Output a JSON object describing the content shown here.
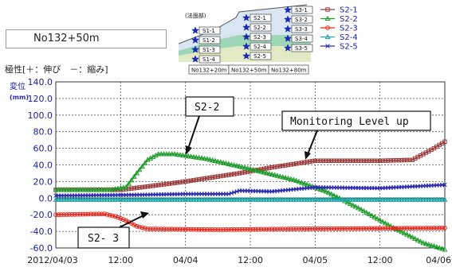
{
  "header": {
    "section_label": "No132+50m",
    "polarity_note": "極性[＋：伸び　－：縮み]",
    "ylabel": "変位",
    "yunit": "(mm)"
  },
  "diagram": {
    "slope_label": "(法面部)",
    "anchor_labels": [
      "S1-1",
      "S1-2",
      "S1-3",
      "S1-4",
      "S1-5",
      "S2-1",
      "S2-2",
      "S2-3",
      "S2-4",
      "S2-5",
      "S3-1",
      "S3-2",
      "S3-3",
      "S3-4",
      "S3-5"
    ],
    "stations": [
      "No132+20m",
      "No132+50m",
      "No132+80m"
    ]
  },
  "callouts": {
    "s2_2": "S2-2",
    "s2_3": "S2- 3",
    "monitoring": "Monitoring Level up"
  },
  "colors": {
    "S2-1": "#9b3a3a",
    "S2-2": "#1d9a2a",
    "S2-3": "#e8261b",
    "S2-4": "#1aa6a6",
    "S2-5": "#2a2ab0",
    "grid": "#555555"
  },
  "chart_data": {
    "type": "line",
    "x_ticks": [
      "2012/04/03",
      "12:00",
      "04/04",
      "12:00",
      "04/05",
      "12:00",
      "04/06"
    ],
    "x_range_hours": [
      0,
      72
    ],
    "y_ticks": [
      "140.0",
      "120.0",
      "100.0",
      "80.0",
      "60.0",
      "40.0",
      "20.0",
      "0.0",
      "-20.0",
      "-40.0",
      "-60.0"
    ],
    "ylim": [
      -60,
      140
    ],
    "legend_position": "top-right",
    "series": [
      {
        "name": "S2-1",
        "marker": "square",
        "points": [
          [
            0,
            10
          ],
          [
            12,
            10
          ],
          [
            17,
            14
          ],
          [
            24,
            20
          ],
          [
            34,
            30
          ],
          [
            40,
            37
          ],
          [
            48,
            45
          ],
          [
            60,
            45
          ],
          [
            66,
            46
          ],
          [
            70,
            60
          ],
          [
            72,
            68
          ]
        ]
      },
      {
        "name": "S2-2",
        "marker": "triangle",
        "points": [
          [
            0,
            10
          ],
          [
            10,
            10
          ],
          [
            13,
            13
          ],
          [
            15,
            30
          ],
          [
            17,
            46
          ],
          [
            19,
            53
          ],
          [
            22,
            53
          ],
          [
            28,
            47
          ],
          [
            36,
            35
          ],
          [
            44,
            22
          ],
          [
            50,
            8
          ],
          [
            56,
            -12
          ],
          [
            62,
            -34
          ],
          [
            68,
            -54
          ],
          [
            72,
            -62
          ]
        ]
      },
      {
        "name": "S2-3",
        "marker": "circle",
        "points": [
          [
            0,
            -20
          ],
          [
            9,
            -19
          ],
          [
            11,
            -22
          ],
          [
            13,
            -27
          ],
          [
            15,
            -34
          ],
          [
            17,
            -37
          ],
          [
            30,
            -38
          ],
          [
            45,
            -37
          ],
          [
            72,
            -36
          ]
        ]
      },
      {
        "name": "S2-4",
        "marker": "triangle",
        "points": [
          [
            0,
            -2
          ],
          [
            72,
            -2
          ]
        ]
      },
      {
        "name": "S2-5",
        "marker": "x",
        "points": [
          [
            0,
            3
          ],
          [
            16,
            4
          ],
          [
            24,
            5
          ],
          [
            32,
            5
          ],
          [
            34,
            9
          ],
          [
            40,
            8
          ],
          [
            48,
            13
          ],
          [
            60,
            12
          ],
          [
            72,
            16
          ]
        ]
      }
    ]
  }
}
